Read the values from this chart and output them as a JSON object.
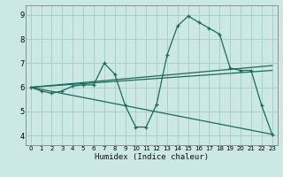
{
  "xlabel": "Humidex (Indice chaleur)",
  "xlim": [
    -0.5,
    23.5
  ],
  "ylim": [
    3.6,
    9.4
  ],
  "xticks": [
    0,
    1,
    2,
    3,
    4,
    5,
    6,
    7,
    8,
    9,
    10,
    11,
    12,
    13,
    14,
    15,
    16,
    17,
    18,
    19,
    20,
    21,
    22,
    23
  ],
  "yticks": [
    4,
    5,
    6,
    7,
    8,
    9
  ],
  "bg_color": "#cce8e4",
  "grid_color": "#aacfcc",
  "line_color": "#1a6b5a",
  "line1_x": [
    0,
    1,
    2,
    3,
    4,
    5,
    6,
    7,
    8,
    9,
    10,
    11,
    12,
    13,
    14,
    15,
    16,
    17,
    18,
    19,
    20,
    21,
    22,
    23
  ],
  "line1_y": [
    6.0,
    5.85,
    5.75,
    5.85,
    6.05,
    6.1,
    6.1,
    7.0,
    6.55,
    5.25,
    4.35,
    4.35,
    5.3,
    7.35,
    8.55,
    8.95,
    8.7,
    8.45,
    8.2,
    6.8,
    6.7,
    6.7,
    5.25,
    4.05
  ],
  "line2_x": [
    0,
    23
  ],
  "line2_y": [
    6.0,
    4.05
  ],
  "line3_x": [
    0,
    23
  ],
  "line3_y": [
    6.0,
    6.7
  ],
  "line4_x": [
    0,
    23
  ],
  "line4_y": [
    6.0,
    6.9
  ]
}
